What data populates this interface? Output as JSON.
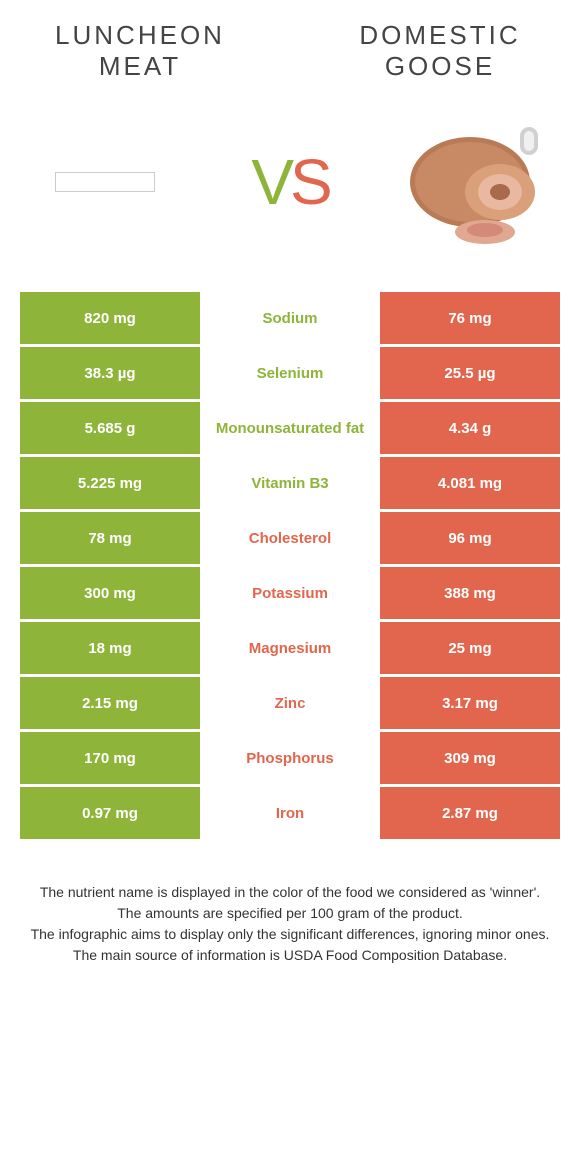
{
  "header": {
    "left_title": "LUNCHEON MEAT",
    "right_title": "DOMESTIC GOOSE",
    "vs_v": "V",
    "vs_s": "S"
  },
  "colors": {
    "left_bg": "#8fb43a",
    "right_bg": "#e2664d",
    "mid_bg": "#ffffff",
    "left_text": "#8fb43a",
    "right_text": "#e2664d"
  },
  "rows": [
    {
      "nutrient": "Sodium",
      "left": "820 mg",
      "right": "76 mg",
      "winner": "left"
    },
    {
      "nutrient": "Selenium",
      "left": "38.3 µg",
      "right": "25.5 µg",
      "winner": "left"
    },
    {
      "nutrient": "Monounsaturated fat",
      "left": "5.685 g",
      "right": "4.34 g",
      "winner": "left"
    },
    {
      "nutrient": "Vitamin B3",
      "left": "5.225 mg",
      "right": "4.081 mg",
      "winner": "left"
    },
    {
      "nutrient": "Cholesterol",
      "left": "78 mg",
      "right": "96 mg",
      "winner": "right"
    },
    {
      "nutrient": "Potassium",
      "left": "300 mg",
      "right": "388 mg",
      "winner": "right"
    },
    {
      "nutrient": "Magnesium",
      "left": "18 mg",
      "right": "25 mg",
      "winner": "right"
    },
    {
      "nutrient": "Zinc",
      "left": "2.15 mg",
      "right": "3.17 mg",
      "winner": "right"
    },
    {
      "nutrient": "Phosphorus",
      "left": "170 mg",
      "right": "309 mg",
      "winner": "right"
    },
    {
      "nutrient": "Iron",
      "left": "0.97 mg",
      "right": "2.87 mg",
      "winner": "right"
    }
  ],
  "footnotes": [
    "The nutrient name is displayed in the color of the food we considered as 'winner'.",
    "The amounts are specified per 100 gram of the product.",
    "The infographic aims to display only the significant differences, ignoring minor ones.",
    "The main source of information is USDA Food Composition Database."
  ]
}
